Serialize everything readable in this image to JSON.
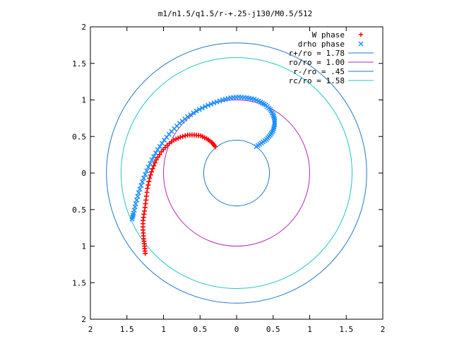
{
  "chart_data": {
    "type": "scatter",
    "title": "m1/n1.5/q1.5/r-+.25-j130/M0.5/512",
    "xlabel": "",
    "ylabel": "",
    "xlim": [
      -2,
      2
    ],
    "ylim": [
      -2,
      2
    ],
    "x_tick_labels": [
      "2",
      "1.5",
      "1",
      "0.5",
      "0",
      "0.5",
      "1",
      "1.5",
      "2"
    ],
    "y_tick_labels": [
      "2",
      "1.5",
      "1",
      "0.5",
      "0",
      "0.5",
      "1",
      "1.5",
      "2"
    ],
    "legend_position": "top-right",
    "grid": false,
    "series": [
      {
        "name": "W phase",
        "kind": "points",
        "marker": "+",
        "color": "#ff0000",
        "points": [
          [
            -0.29,
            0.36
          ],
          [
            -0.34,
            0.42
          ],
          [
            -0.41,
            0.47
          ],
          [
            -0.49,
            0.51
          ],
          [
            -0.58,
            0.52
          ],
          [
            -0.67,
            0.52
          ],
          [
            -0.77,
            0.49
          ],
          [
            -0.86,
            0.45
          ],
          [
            -0.95,
            0.38
          ],
          [
            -1.03,
            0.29
          ],
          [
            -1.1,
            0.18
          ],
          [
            -1.15,
            0.06
          ],
          [
            -1.19,
            -0.07
          ],
          [
            -1.22,
            -0.21
          ],
          [
            -1.24,
            -0.37
          ],
          [
            -1.26,
            -0.52
          ],
          [
            -1.28,
            -0.65
          ],
          [
            -1.28,
            -0.78
          ],
          [
            -1.27,
            -0.9
          ],
          [
            -1.26,
            -1.0
          ],
          [
            -1.25,
            -1.1
          ]
        ]
      },
      {
        "name": "drho phase",
        "kind": "points",
        "marker": "x",
        "color": "#1e90ff",
        "points": [
          [
            0.27,
            0.36
          ],
          [
            0.34,
            0.41
          ],
          [
            0.41,
            0.46
          ],
          [
            0.46,
            0.52
          ],
          [
            0.5,
            0.58
          ],
          [
            0.52,
            0.66
          ],
          [
            0.52,
            0.73
          ],
          [
            0.5,
            0.8
          ],
          [
            0.46,
            0.87
          ],
          [
            0.4,
            0.93
          ],
          [
            0.33,
            0.97
          ],
          [
            0.24,
            1.01
          ],
          [
            0.14,
            1.03
          ],
          [
            0.03,
            1.04
          ],
          [
            -0.08,
            1.03
          ],
          [
            -0.19,
            1.0
          ],
          [
            -0.31,
            0.96
          ],
          [
            -0.43,
            0.91
          ],
          [
            -0.55,
            0.85
          ],
          [
            -0.67,
            0.77
          ],
          [
            -0.78,
            0.68
          ],
          [
            -0.89,
            0.57
          ],
          [
            -0.99,
            0.45
          ],
          [
            -1.08,
            0.32
          ],
          [
            -1.16,
            0.18
          ],
          [
            -1.23,
            0.03
          ],
          [
            -1.29,
            -0.12
          ],
          [
            -1.34,
            -0.27
          ],
          [
            -1.38,
            -0.42
          ],
          [
            -1.41,
            -0.55
          ],
          [
            -1.43,
            -0.63
          ]
        ]
      },
      {
        "name": "r+/ro = 1.78",
        "kind": "circle",
        "radius": 1.78,
        "color": "#1f78c8"
      },
      {
        "name": "ro/ro = 1.00",
        "kind": "circle",
        "radius": 1.0,
        "color": "#b02aaf"
      },
      {
        "name": "r-/ro = .45",
        "kind": "circle",
        "radius": 0.45,
        "color": "#1f78c8"
      },
      {
        "name": "rc/ro = 1.58",
        "kind": "circle",
        "radius": 1.58,
        "color": "#20c6c6"
      }
    ]
  }
}
